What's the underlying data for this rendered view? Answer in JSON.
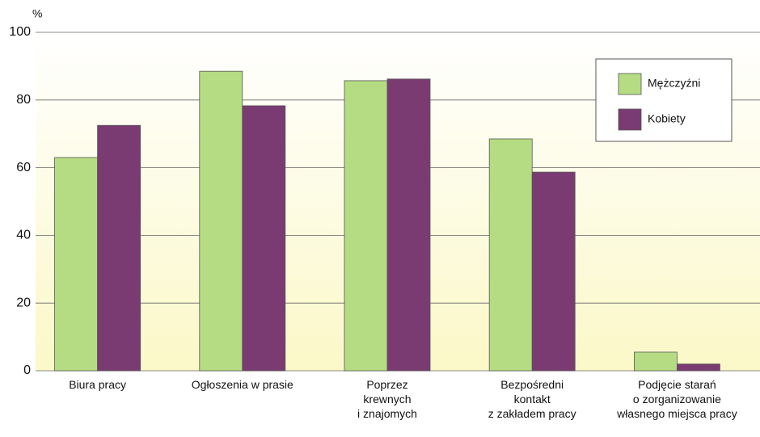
{
  "chart_data": {
    "type": "bar",
    "y_label": "%",
    "categories": [
      "Biura pracy",
      "Ogłoszenia w prasie",
      "Poprzez\nkrewnych\ni znajomych",
      "Bezpośredni\nkontakt\nz zakładem pracy",
      "Podjęcie starań\no zorganizowanie\nwłasnego miejsca pracy"
    ],
    "series": [
      {
        "name": "Mężczyźni",
        "color": "#b5dc82",
        "values": [
          63,
          88.5,
          85.7,
          68.5,
          5.5
        ]
      },
      {
        "name": "Kobiety",
        "color": "#7a3b72",
        "values": [
          72.5,
          78.3,
          86.2,
          58.7,
          2
        ]
      }
    ],
    "ylim": [
      0,
      100
    ],
    "yticks": [
      0,
      20,
      40,
      60,
      80,
      100
    ],
    "grid": true,
    "legend": "upper right"
  }
}
